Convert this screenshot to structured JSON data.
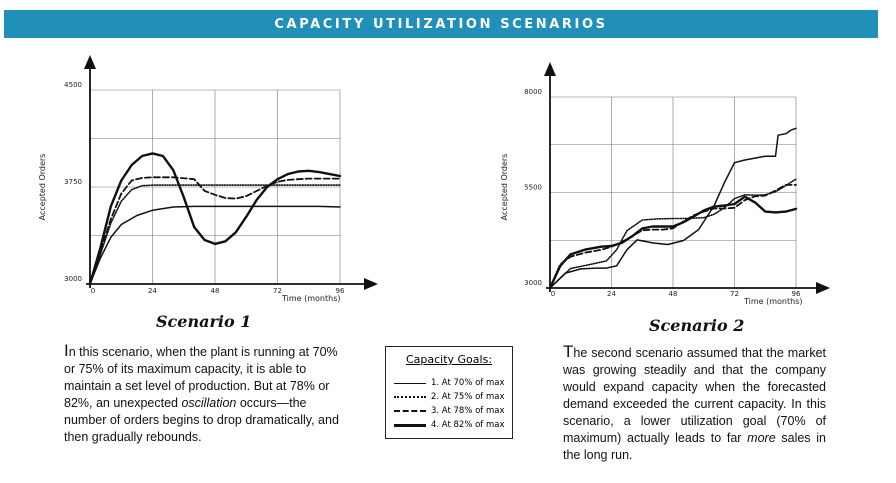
{
  "banner": {
    "title": "CAPACITY UTILIZATION SCENARIOS"
  },
  "legend": {
    "title": "Capacity Goals:",
    "items": [
      {
        "label": "1. At 70% of max",
        "style": "solid"
      },
      {
        "label": "2. At 75% of max",
        "style": "dotted"
      },
      {
        "label": "3. At 78% of max",
        "style": "dashed"
      },
      {
        "label": "4. At 82% of max",
        "style": "solid-bold"
      }
    ]
  },
  "scenario1": {
    "title": "Scenario 1",
    "text_lead": "I",
    "text_part1": "n this scenario, when the plant is running at 70% or 75% of its maximum capacity, it is able to maintain a set level of production.  But at 78% or 82%, an unexpected ",
    "text_em": "oscillation",
    "text_part2": " occurs—the number of orders begins to drop dramatically, and then gradually rebounds."
  },
  "scenario2": {
    "title": "Scenario 2",
    "text_lead": "T",
    "text_part1": "he second scenario assumed that the market was growing steadily and that the company would expand capacity when the forecasted demand exceeded the current capacity.  In this scenario, a lower utilization goal (70% of maximum) actually leads to far ",
    "text_em": "more",
    "text_part2": " sales in the long run."
  },
  "chart_data": [
    {
      "type": "line",
      "title": "Scenario 1",
      "xlabel": "Time (months)",
      "ylabel": "Accepted Orders",
      "xlim": [
        0,
        96
      ],
      "ylim": [
        3000,
        4500
      ],
      "x_ticks": [
        "0",
        "24",
        "48",
        "72",
        "96"
      ],
      "y_ticks": [
        "3000",
        "3750",
        "4500"
      ],
      "grid": true,
      "series": [
        {
          "name": "1. At 70% of max",
          "style": "solid",
          "x": [
            0,
            4,
            8,
            12,
            18,
            24,
            32,
            40,
            48,
            56,
            64,
            72,
            80,
            88,
            96
          ],
          "y": [
            3000,
            3200,
            3360,
            3460,
            3530,
            3570,
            3595,
            3600,
            3600,
            3600,
            3600,
            3600,
            3600,
            3600,
            3595
          ]
        },
        {
          "name": "2. At 75% of max",
          "style": "dotted",
          "x": [
            0,
            4,
            8,
            12,
            16,
            20,
            24,
            32,
            40,
            48,
            56,
            64,
            72,
            80,
            88,
            96
          ],
          "y": [
            3000,
            3230,
            3470,
            3640,
            3730,
            3760,
            3765,
            3765,
            3765,
            3765,
            3765,
            3765,
            3765,
            3765,
            3765,
            3765
          ]
        },
        {
          "name": "3. At 78% of max",
          "style": "dashed",
          "x": [
            0,
            4,
            8,
            12,
            16,
            20,
            24,
            32,
            40,
            44,
            48,
            52,
            56,
            60,
            64,
            68,
            72,
            76,
            80,
            84,
            88,
            92,
            96
          ],
          "y": [
            3000,
            3250,
            3500,
            3700,
            3800,
            3820,
            3825,
            3825,
            3810,
            3720,
            3690,
            3665,
            3660,
            3680,
            3720,
            3760,
            3790,
            3805,
            3810,
            3815,
            3815,
            3815,
            3815
          ]
        },
        {
          "name": "4. At 82% of max",
          "style": "solid-bold",
          "x": [
            0,
            4,
            8,
            12,
            16,
            20,
            24,
            28,
            32,
            36,
            40,
            44,
            48,
            52,
            56,
            60,
            64,
            68,
            72,
            76,
            80,
            84,
            88,
            92,
            96
          ],
          "y": [
            3000,
            3280,
            3600,
            3800,
            3920,
            3990,
            4010,
            3990,
            3880,
            3670,
            3440,
            3340,
            3310,
            3330,
            3400,
            3520,
            3650,
            3750,
            3810,
            3850,
            3870,
            3875,
            3865,
            3850,
            3835
          ]
        }
      ]
    },
    {
      "type": "line",
      "title": "Scenario 2",
      "xlabel": "Time (months)",
      "ylabel": "Accepted Orders",
      "xlim": [
        0,
        96
      ],
      "ylim": [
        3000,
        8000
      ],
      "x_ticks": [
        "0",
        "24",
        "48",
        "72",
        "96"
      ],
      "y_ticks": [
        "3000",
        "5500",
        "8000"
      ],
      "grid": true,
      "series": [
        {
          "name": "1. At 70% of max",
          "style": "solid",
          "x": [
            0,
            6,
            12,
            18,
            22,
            26,
            30,
            34,
            40,
            46,
            52,
            58,
            64,
            68,
            72,
            76,
            80,
            84,
            88,
            89,
            92,
            94,
            96
          ],
          "y": [
            3000,
            3390,
            3500,
            3520,
            3520,
            3580,
            4000,
            4260,
            4180,
            4140,
            4240,
            4530,
            5150,
            5750,
            6280,
            6350,
            6400,
            6450,
            6450,
            7000,
            7040,
            7130,
            7180
          ]
        },
        {
          "name": "2. At 75% of max",
          "style": "dotted",
          "x": [
            0,
            8,
            16,
            22,
            26,
            30,
            36,
            42,
            48,
            52,
            56,
            60,
            64,
            68,
            72,
            76,
            80,
            84,
            88,
            92,
            96
          ],
          "y": [
            3000,
            3510,
            3620,
            3710,
            4000,
            4500,
            4780,
            4810,
            4820,
            4820,
            4830,
            4840,
            4930,
            5100,
            5340,
            5440,
            5430,
            5440,
            5520,
            5680,
            5850
          ]
        },
        {
          "name": "3. At 78% of max",
          "style": "dashed",
          "x": [
            0,
            4,
            8,
            14,
            20,
            24,
            28,
            32,
            36,
            40,
            44,
            48,
            52,
            56,
            60,
            64,
            68,
            72,
            76,
            80,
            84,
            88,
            92,
            96
          ],
          "y": [
            3000,
            3620,
            3820,
            3930,
            4000,
            4080,
            4200,
            4360,
            4510,
            4530,
            4530,
            4560,
            4740,
            4900,
            5000,
            5080,
            5080,
            5100,
            5300,
            5400,
            5420,
            5550,
            5700,
            5700
          ]
        },
        {
          "name": "4. At 82% of max",
          "style": "solid-bold",
          "x": [
            0,
            4,
            8,
            14,
            20,
            24,
            28,
            32,
            36,
            40,
            44,
            48,
            52,
            56,
            60,
            64,
            68,
            72,
            76,
            80,
            84,
            88,
            92,
            96
          ],
          "y": [
            3000,
            3580,
            3880,
            4010,
            4080,
            4100,
            4180,
            4350,
            4560,
            4610,
            4610,
            4610,
            4720,
            4870,
            5030,
            5130,
            5160,
            5200,
            5390,
            5240,
            5000,
            4980,
            5000,
            5070
          ]
        }
      ]
    }
  ]
}
